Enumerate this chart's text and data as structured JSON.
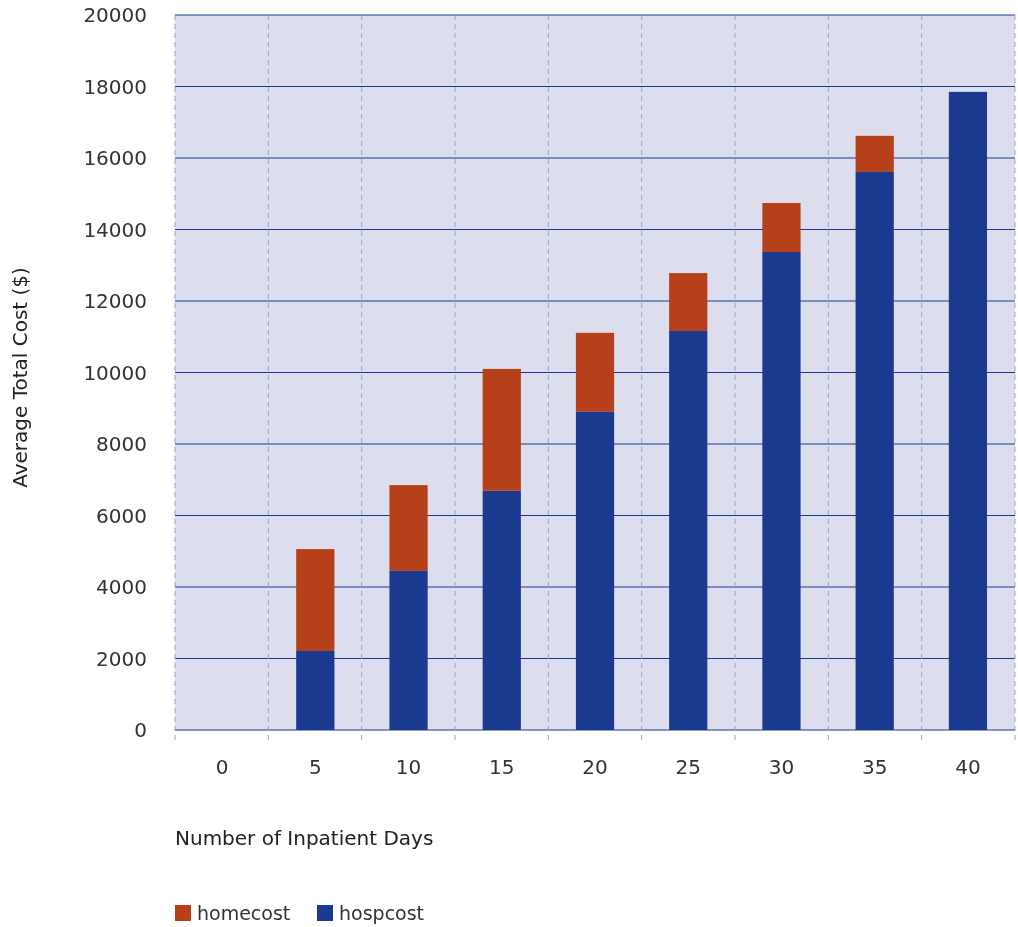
{
  "chart_data": {
    "type": "bar",
    "stacked": true,
    "xlabel": "Number of Inpatient Days",
    "ylabel": "Average Total Cost ($)",
    "categories": [
      "0",
      "5",
      "10",
      "15",
      "20",
      "25",
      "30",
      "35",
      "40"
    ],
    "series": [
      {
        "name": "hospcost",
        "color": "#1a3a8f",
        "values": [
          null,
          2210,
          4450,
          6690,
          8900,
          11160,
          13370,
          15610,
          17850
        ]
      },
      {
        "name": "homecost",
        "color": "#b5401a",
        "values": [
          null,
          2850,
          2400,
          3410,
          2210,
          1620,
          1370,
          1010,
          0
        ]
      }
    ],
    "ylim": [
      0,
      20000
    ],
    "yticks": [
      0,
      2000,
      4000,
      6000,
      8000,
      10000,
      12000,
      14000,
      16000,
      18000,
      20000
    ],
    "grid": true,
    "legend": "bottom"
  }
}
